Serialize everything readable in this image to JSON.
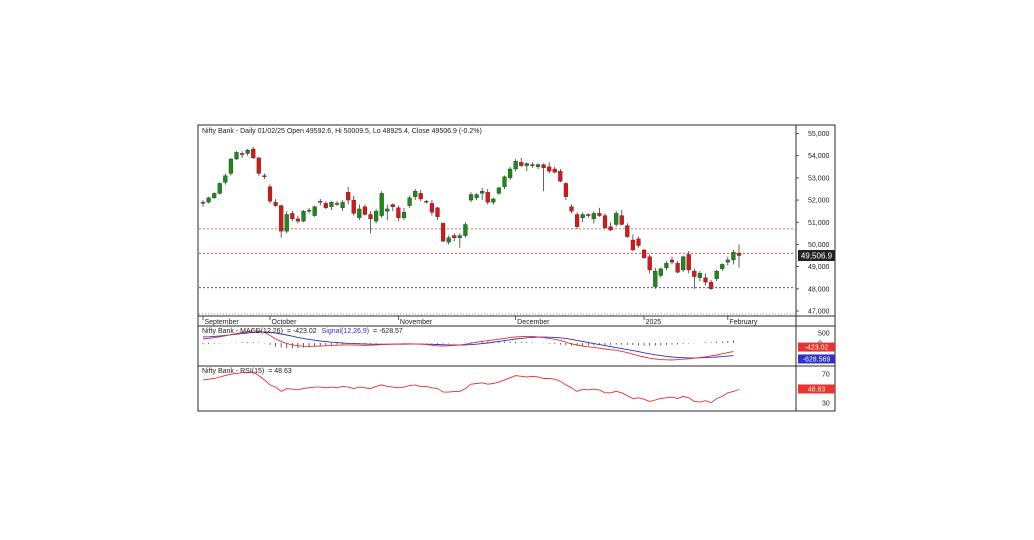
{
  "chart_data": [
    {
      "type": "candlestick",
      "title": "Nifty Bank - Daily 01/02/25 Open 49592.6, Hi 50009.5, Lo 48925.4, Close 49506.9 (-0.2%)",
      "ylim": [
        47000,
        55000
      ],
      "y_ticks": [
        "55,000",
        "54,000",
        "53,000",
        "52,000",
        "51,000",
        "50,000",
        "49,000",
        "48,000",
        "47,000"
      ],
      "x_tick_labels": [
        "September",
        "October",
        "November",
        "December",
        "2025",
        "February"
      ],
      "last_price_label": "49,506.9",
      "reference_lines": [
        {
          "value": 50700,
          "color": "#e8332e"
        },
        {
          "value": 49600,
          "color": "#e8332e"
        },
        {
          "value": 48050,
          "color": "#3030c8"
        }
      ],
      "candles": [
        [
          51900,
          52000,
          51700,
          51850
        ],
        [
          51900,
          52150,
          51850,
          52100
        ],
        [
          52100,
          52350,
          52050,
          52300
        ],
        [
          52300,
          52800,
          52250,
          52750
        ],
        [
          52800,
          53200,
          52700,
          53100
        ],
        [
          53200,
          53900,
          53100,
          53850
        ],
        [
          53850,
          54200,
          53800,
          54150
        ],
        [
          54100,
          54200,
          53900,
          54050
        ],
        [
          54100,
          54300,
          54000,
          54250
        ],
        [
          54300,
          54400,
          53850,
          53900
        ],
        [
          53900,
          53950,
          53100,
          53200
        ],
        [
          53100,
          53200,
          52950,
          53050
        ],
        [
          52600,
          52700,
          51850,
          51950
        ],
        [
          51900,
          52050,
          51700,
          51750
        ],
        [
          51750,
          51800,
          50300,
          50600
        ],
        [
          50600,
          51500,
          50500,
          51350
        ],
        [
          51400,
          51500,
          51050,
          51150
        ],
        [
          51150,
          51300,
          50950,
          51050
        ],
        [
          51050,
          51550,
          51000,
          51500
        ],
        [
          51500,
          51650,
          51400,
          51550
        ],
        [
          51300,
          51750,
          51250,
          51700
        ],
        [
          51950,
          52050,
          51750,
          51900
        ],
        [
          51850,
          51950,
          51600,
          51650
        ],
        [
          51700,
          51950,
          51550,
          51900
        ],
        [
          51850,
          51950,
          51750,
          51800
        ],
        [
          51650,
          52000,
          51500,
          51900
        ],
        [
          52350,
          52600,
          51800,
          52000
        ],
        [
          52000,
          52200,
          51300,
          51400
        ],
        [
          51200,
          51800,
          51100,
          51600
        ],
        [
          51700,
          51800,
          51300,
          51350
        ],
        [
          51350,
          51500,
          50500,
          51150
        ],
        [
          51050,
          51600,
          50950,
          51500
        ],
        [
          51300,
          52400,
          51200,
          52300
        ],
        [
          51500,
          51800,
          51100,
          51600
        ],
        [
          51800,
          51850,
          51500,
          51700
        ],
        [
          51650,
          51750,
          51050,
          51200
        ],
        [
          51200,
          51650,
          51100,
          51450
        ],
        [
          51750,
          52200,
          51650,
          52100
        ],
        [
          52150,
          52500,
          52000,
          52400
        ],
        [
          52300,
          52450,
          51950,
          52050
        ],
        [
          51950,
          52000,
          51850,
          51900
        ],
        [
          51850,
          52000,
          51300,
          51450
        ],
        [
          51650,
          51700,
          51100,
          51250
        ],
        [
          50950,
          51000,
          50100,
          50150
        ],
        [
          50100,
          50400,
          50000,
          50300
        ],
        [
          50400,
          50500,
          50150,
          50300
        ],
        [
          50300,
          50500,
          49850,
          50400
        ],
        [
          50400,
          51000,
          50300,
          50900
        ],
        [
          52000,
          52350,
          51900,
          52250
        ],
        [
          52100,
          52300,
          52000,
          52250
        ],
        [
          52300,
          52550,
          52000,
          52400
        ],
        [
          52350,
          52500,
          51800,
          51900
        ],
        [
          51900,
          52100,
          51800,
          52050
        ],
        [
          52300,
          52600,
          52250,
          52550
        ],
        [
          52600,
          53100,
          52500,
          53050
        ],
        [
          53000,
          53500,
          52900,
          53400
        ],
        [
          53400,
          53850,
          53300,
          53750
        ],
        [
          53700,
          53900,
          53500,
          53550
        ],
        [
          53550,
          53700,
          53300,
          53650
        ],
        [
          53600,
          53700,
          53450,
          53550
        ],
        [
          53500,
          53650,
          53400,
          53600
        ],
        [
          53600,
          53650,
          52400,
          53450
        ],
        [
          53500,
          53700,
          53200,
          53300
        ],
        [
          53400,
          53500,
          53200,
          53250
        ],
        [
          53300,
          53400,
          52800,
          52850
        ],
        [
          52750,
          52800,
          52000,
          52150
        ],
        [
          51700,
          51800,
          51400,
          51500
        ],
        [
          51350,
          51450,
          50700,
          50800
        ],
        [
          51200,
          51450,
          51000,
          51350
        ],
        [
          51350,
          51400,
          51200,
          51300
        ],
        [
          51150,
          51500,
          50950,
          51400
        ],
        [
          51400,
          51650,
          51250,
          51300
        ],
        [
          51300,
          51400,
          50700,
          50750
        ],
        [
          50800,
          51000,
          50600,
          50650
        ],
        [
          50900,
          51500,
          50800,
          51400
        ],
        [
          51300,
          51550,
          50850,
          50900
        ],
        [
          50850,
          50950,
          50300,
          50350
        ],
        [
          50200,
          50450,
          49700,
          49750
        ],
        [
          50250,
          50350,
          49850,
          49950
        ],
        [
          49750,
          49800,
          49350,
          49400
        ],
        [
          49450,
          49550,
          48700,
          48850
        ],
        [
          48100,
          48950,
          48000,
          48800
        ],
        [
          48600,
          48950,
          48500,
          48900
        ],
        [
          48950,
          49250,
          48850,
          49150
        ],
        [
          49300,
          49450,
          49100,
          49200
        ],
        [
          49150,
          49250,
          48700,
          48750
        ],
        [
          48850,
          49500,
          48750,
          49450
        ],
        [
          49550,
          49700,
          48700,
          48850
        ],
        [
          48800,
          48900,
          48000,
          48550
        ],
        [
          48500,
          48800,
          48350,
          48700
        ],
        [
          48500,
          48700,
          48150,
          48300
        ],
        [
          48300,
          48400,
          47950,
          48000
        ],
        [
          48450,
          48850,
          48350,
          48800
        ],
        [
          48900,
          49150,
          48800,
          49100
        ],
        [
          49200,
          49450,
          49050,
          49300
        ],
        [
          49300,
          49750,
          49100,
          49650
        ],
        [
          49600,
          50000,
          48950,
          49500
        ]
      ]
    },
    {
      "type": "line",
      "title": "MACD",
      "legend": [
        {
          "name": "Nifty Bank - MACD(12,26)",
          "value": "= -423.02",
          "color": "#e8332e"
        },
        {
          "name": "Signal(12,26,9)",
          "value": "= -628.57",
          "color": "#3030c8"
        }
      ],
      "ylim": [
        -1100,
        800
      ],
      "y_ticks": [
        "500",
        "0"
      ],
      "badges": [
        {
          "text": "-423.02",
          "color": "#e8332e"
        },
        {
          "text": "-628.569",
          "color": "#3030c8"
        }
      ],
      "macd": [
        200,
        230,
        270,
        310,
        360,
        420,
        470,
        520,
        570,
        610,
        600,
        520,
        380,
        200,
        80,
        -30,
        -90,
        -140,
        -160,
        -170,
        -160,
        -150,
        -140,
        -120,
        -110,
        -100,
        -90,
        -100,
        -110,
        -120,
        -110,
        -100,
        -80,
        -70,
        -60,
        -50,
        -40,
        -40,
        -50,
        -60,
        -80,
        -110,
        -140,
        -150,
        -140,
        -120,
        -100,
        -60,
        -10,
        40,
        80,
        120,
        150,
        190,
        230,
        270,
        300,
        320,
        330,
        330,
        300,
        270,
        230,
        190,
        130,
        40,
        -40,
        -100,
        -150,
        -190,
        -220,
        -260,
        -300,
        -340,
        -360,
        -420,
        -480,
        -560,
        -640,
        -700,
        -760,
        -800,
        -830,
        -840,
        -850,
        -830,
        -810,
        -790,
        -760,
        -730,
        -690,
        -640,
        -600,
        -540,
        -480,
        -423.02
      ],
      "signal": [
        300,
        310,
        330,
        350,
        380,
        410,
        440,
        470,
        500,
        530,
        550,
        555,
        540,
        500,
        450,
        400,
        340,
        280,
        230,
        180,
        140,
        100,
        70,
        40,
        20,
        0,
        -20,
        -30,
        -40,
        -50,
        -60,
        -60,
        -60,
        -60,
        -60,
        -60,
        -60,
        -55,
        -55,
        -55,
        -60,
        -65,
        -75,
        -85,
        -95,
        -100,
        -100,
        -95,
        -80,
        -60,
        -30,
        0,
        40,
        80,
        120,
        160,
        200,
        230,
        260,
        280,
        290,
        295,
        290,
        280,
        260,
        230,
        180,
        130,
        80,
        20,
        -30,
        -80,
        -130,
        -180,
        -230,
        -280,
        -330,
        -380,
        -430,
        -490,
        -540,
        -590,
        -630,
        -670,
        -700,
        -720,
        -735,
        -745,
        -745,
        -740,
        -730,
        -715,
        -700,
        -680,
        -655,
        -628.57
      ]
    },
    {
      "type": "line",
      "title": "RSI",
      "legend": [
        {
          "name": "Nifty Bank - RSI(15)",
          "value": "= 48.63",
          "color": "#e8332e"
        }
      ],
      "ylim": [
        20,
        80
      ],
      "y_ticks": [
        "70",
        "30"
      ],
      "badges": [
        {
          "text": "48.63",
          "color": "#e8332e"
        }
      ],
      "rsi": [
        62,
        63,
        64,
        66,
        68,
        70,
        71,
        72,
        72,
        73,
        68,
        62,
        55,
        52,
        46,
        50,
        49,
        48,
        50,
        51,
        52,
        52,
        51,
        52,
        51,
        53,
        52,
        50,
        52,
        51,
        50,
        53,
        55,
        53,
        52,
        51,
        52,
        54,
        55,
        53,
        53,
        51,
        50,
        45,
        45,
        46,
        46,
        50,
        56,
        57,
        58,
        56,
        57,
        59,
        62,
        65,
        68,
        67,
        66,
        67,
        66,
        64,
        64,
        63,
        60,
        55,
        51,
        46,
        49,
        48,
        49,
        48,
        44,
        44,
        46,
        44,
        40,
        36,
        37,
        35,
        32,
        34,
        36,
        37,
        38,
        36,
        39,
        37,
        32,
        31,
        33,
        30,
        36,
        39,
        44,
        46,
        48.63
      ]
    }
  ],
  "colors": {
    "up": "#1a8a1a",
    "down": "#d81818",
    "axis": "#333333",
    "grid": "#555555"
  }
}
